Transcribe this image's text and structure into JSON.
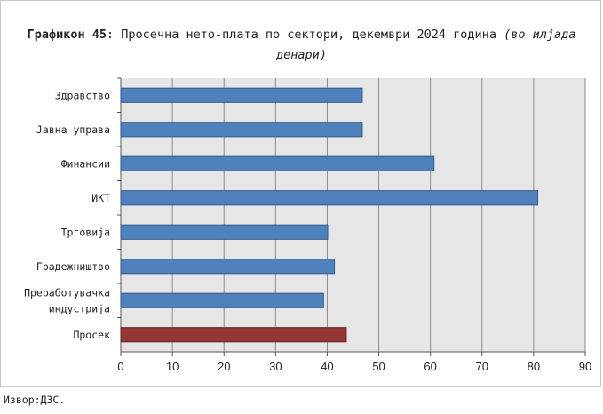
{
  "chart_data": {
    "type": "bar",
    "orientation": "horizontal",
    "title": {
      "bold": "Графикон 45",
      "main": ": Просечна нето-плата по сектори, декември 2024 година ",
      "italic": "(во илјада денари)"
    },
    "categories": [
      "Здравство",
      "Јавна управа",
      "Финансии",
      "ИКТ",
      "Трговија",
      "Градежништво",
      "Преработувачка индустрија",
      "Просек"
    ],
    "category_lines": [
      [
        "Здравство"
      ],
      [
        "Јавна управа"
      ],
      [
        "Финансии"
      ],
      [
        "ИКТ"
      ],
      [
        "Трговија"
      ],
      [
        "Градежништво"
      ],
      [
        "Преработувачка",
        "индустрија"
      ],
      [
        "Просек"
      ]
    ],
    "values": [
      46.8,
      46.8,
      60.7,
      80.8,
      40.1,
      41.4,
      39.3,
      43.7
    ],
    "xlim": [
      0,
      90
    ],
    "xticks": [
      "0",
      "10",
      "20",
      "30",
      "40",
      "50",
      "60",
      "70",
      "80",
      "90"
    ],
    "grid": "vertical",
    "colors": {
      "bar": "#4F81BD",
      "bar_border": "#2F5A8E",
      "highlight": "#953735",
      "highlight_border": "#6A2322",
      "plot_bg": "#E6E6E6",
      "grid": "#8C8C8C"
    },
    "highlight_category": "Просек"
  },
  "source": "Извор:ДЗС."
}
